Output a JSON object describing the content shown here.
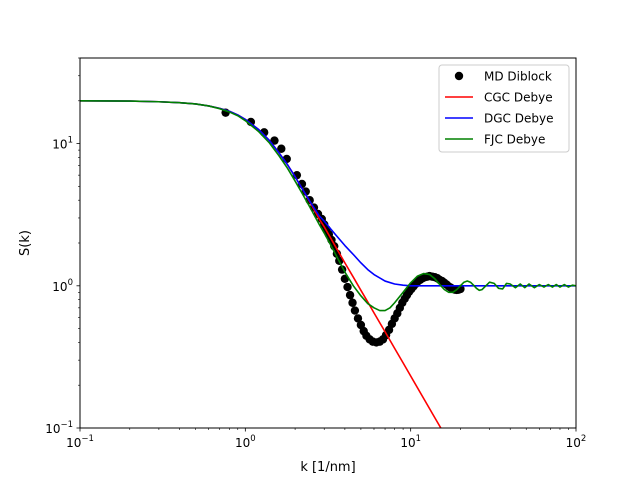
{
  "chart_data": {
    "type": "line",
    "title": "",
    "xlabel": "k [1/nm]",
    "ylabel": "S(k)",
    "xscale": "log",
    "yscale": "log",
    "xlim": [
      0.1,
      100
    ],
    "ylim": [
      0.1,
      40
    ],
    "grid": false,
    "legend_position": "top-right",
    "x_ticks": [
      {
        "value": 0.1,
        "base": "10",
        "exp": "−1"
      },
      {
        "value": 1,
        "base": "10",
        "exp": "0"
      },
      {
        "value": 10,
        "base": "10",
        "exp": "1"
      },
      {
        "value": 100,
        "base": "10",
        "exp": "2"
      }
    ],
    "y_ticks": [
      {
        "value": 0.1,
        "base": "10",
        "exp": "−1"
      },
      {
        "value": 1,
        "base": "10",
        "exp": "0"
      },
      {
        "value": 10,
        "base": "10",
        "exp": "1"
      }
    ],
    "series": [
      {
        "name": "MD Diblock",
        "kind": "scatter",
        "color": "#000000",
        "x": [
          0.76,
          1.08,
          1.3,
          1.5,
          1.65,
          1.78,
          2.05,
          2.2,
          2.32,
          2.45,
          2.6,
          2.75,
          2.9,
          3.0,
          3.1,
          3.2,
          3.32,
          3.45,
          3.58,
          3.7,
          3.85,
          4.0,
          4.15,
          4.3,
          4.45,
          4.6,
          4.8,
          5.0,
          5.2,
          5.4,
          5.65,
          5.9,
          6.2,
          6.5,
          6.8,
          7.1,
          7.4,
          7.7,
          8.0,
          8.3,
          8.6,
          8.9,
          9.2,
          9.5,
          9.8,
          10.1,
          10.4,
          10.7,
          11.0,
          11.4,
          11.8,
          12.2,
          12.6,
          13.0,
          13.5,
          14.0,
          14.5,
          15.0,
          15.5,
          16.0,
          16.5,
          17.0,
          17.5,
          18.0,
          18.5,
          19.0,
          19.5,
          20.0
        ],
        "y": [
          16.5,
          14.2,
          12.0,
          10.5,
          9.2,
          7.8,
          6.0,
          5.2,
          4.6,
          4.0,
          3.55,
          3.2,
          2.95,
          2.7,
          2.5,
          2.3,
          2.1,
          1.9,
          1.68,
          1.5,
          1.3,
          1.12,
          0.98,
          0.86,
          0.76,
          0.67,
          0.59,
          0.53,
          0.48,
          0.445,
          0.42,
          0.405,
          0.4,
          0.405,
          0.42,
          0.45,
          0.49,
          0.54,
          0.59,
          0.64,
          0.7,
          0.76,
          0.81,
          0.86,
          0.91,
          0.95,
          0.99,
          1.03,
          1.07,
          1.1,
          1.13,
          1.15,
          1.16,
          1.17,
          1.16,
          1.15,
          1.13,
          1.1,
          1.08,
          1.05,
          1.02,
          0.99,
          0.97,
          0.95,
          0.94,
          0.935,
          0.94,
          0.95
        ]
      },
      {
        "name": "CGC Debye",
        "kind": "line",
        "color": "#ff0000",
        "x": [
          0.1,
          0.2,
          0.3,
          0.4,
          0.5,
          0.6,
          0.7,
          0.8,
          0.9,
          1.0,
          1.2,
          1.4,
          1.6,
          1.8,
          2.0,
          2.2,
          2.5,
          2.8,
          3.0,
          3.2,
          3.5,
          4.0,
          4.5,
          5.0,
          5.5,
          6.0,
          7.0,
          8.0,
          9.0,
          10.0,
          12.0,
          14.0,
          16.0,
          17.3
        ],
        "y": [
          20.0,
          19.9,
          19.7,
          19.4,
          19.0,
          18.4,
          17.7,
          16.9,
          15.9,
          14.8,
          12.6,
          10.5,
          8.6,
          7.1,
          5.85,
          4.85,
          3.75,
          2.95,
          2.6,
          2.28,
          1.9,
          1.45,
          1.15,
          0.93,
          0.77,
          0.645,
          0.475,
          0.363,
          0.287,
          0.232,
          0.161,
          0.118,
          0.0905,
          0.0775
        ]
      },
      {
        "name": "DGC Debye",
        "kind": "line",
        "color": "#0000ff",
        "x": [
          0.1,
          0.2,
          0.3,
          0.4,
          0.5,
          0.6,
          0.7,
          0.8,
          0.9,
          1.0,
          1.2,
          1.4,
          1.6,
          1.8,
          2.0,
          2.2,
          2.5,
          2.8,
          3.0,
          3.2,
          3.5,
          4.0,
          4.5,
          5.0,
          5.5,
          6.0,
          7.0,
          8.0,
          9.0,
          10.0,
          12.0,
          15.0,
          20.0,
          30.0,
          50.0,
          100.0
        ],
        "y": [
          20.0,
          19.9,
          19.7,
          19.4,
          19.0,
          18.4,
          17.7,
          16.9,
          15.9,
          14.8,
          12.6,
          10.5,
          8.6,
          7.1,
          5.85,
          4.85,
          3.8,
          3.1,
          2.85,
          2.6,
          2.3,
          1.92,
          1.66,
          1.45,
          1.3,
          1.2,
          1.08,
          1.03,
          1.01,
          1.0,
          1.0,
          1.0,
          1.0,
          1.0,
          1.0,
          1.0
        ]
      },
      {
        "name": "FJC Debye",
        "kind": "line",
        "color": "#008000",
        "x": [
          0.1,
          0.2,
          0.3,
          0.4,
          0.5,
          0.6,
          0.7,
          0.8,
          0.9,
          1.0,
          1.2,
          1.4,
          1.6,
          1.8,
          2.0,
          2.2,
          2.5,
          2.8,
          3.0,
          3.2,
          3.5,
          4.0,
          4.5,
          5.0,
          5.5,
          6.0,
          6.5,
          7.0,
          7.5,
          8.0,
          9.0,
          10.0,
          11.0,
          12.0,
          13.0,
          14.0,
          15.0,
          16.0,
          17.0,
          18.0,
          19.0,
          20.0,
          21.0,
          22.0,
          23.0,
          24.0,
          25.0,
          26.0,
          27.0,
          28.0,
          30.0,
          32.0,
          34.0,
          36.0,
          38.0,
          40.0,
          43.0,
          46.0,
          49.0,
          52.0,
          56.0,
          60.0,
          64.0,
          68.0,
          72.0,
          76.0,
          80.0,
          85.0,
          90.0,
          95.0,
          100.0
        ],
        "y": [
          20.0,
          19.9,
          19.7,
          19.4,
          19.0,
          18.4,
          17.6,
          16.7,
          15.7,
          14.5,
          12.2,
          10.1,
          8.2,
          6.7,
          5.45,
          4.5,
          3.45,
          2.7,
          2.35,
          2.05,
          1.68,
          1.25,
          1.0,
          0.85,
          0.75,
          0.7,
          0.67,
          0.67,
          0.7,
          0.76,
          0.9,
          1.05,
          1.17,
          1.22,
          1.2,
          1.12,
          1.02,
          0.94,
          0.9,
          0.9,
          0.94,
          1.0,
          1.06,
          1.08,
          1.06,
          1.01,
          0.96,
          0.93,
          0.94,
          0.98,
          1.06,
          1.04,
          0.96,
          0.95,
          1.04,
          1.03,
          0.97,
          1.03,
          0.97,
          1.03,
          0.97,
          1.02,
          0.98,
          1.02,
          0.98,
          1.02,
          0.98,
          1.02,
          0.98,
          1.01,
          1.0
        ]
      }
    ]
  }
}
